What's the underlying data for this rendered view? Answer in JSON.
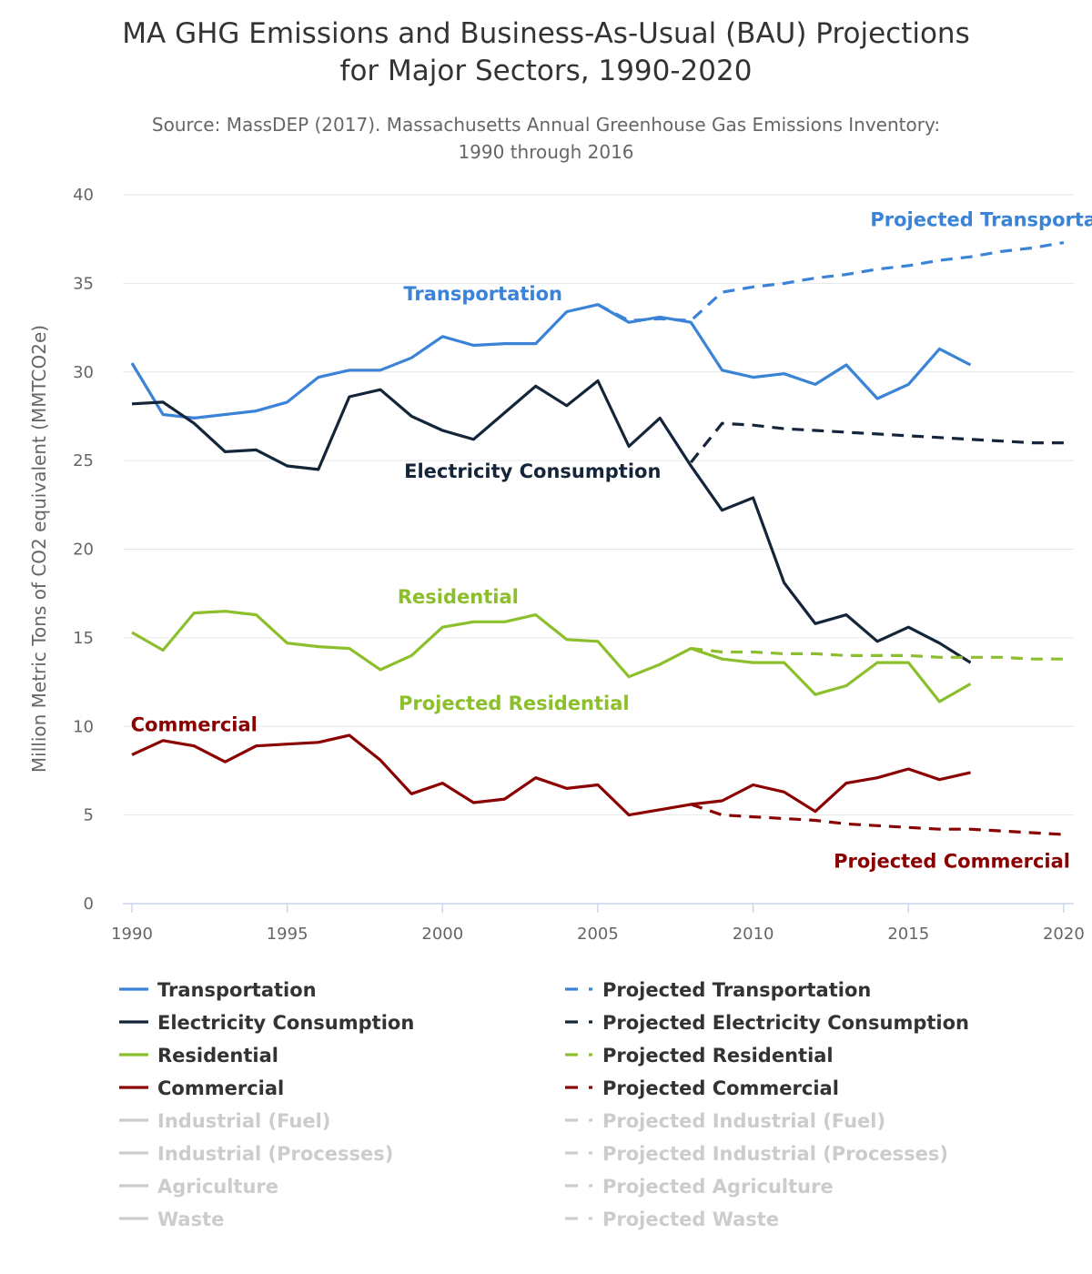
{
  "chart_data": {
    "type": "line",
    "title_line1": "MA GHG Emissions and Business-As-Usual (BAU) Projections",
    "title_line2": "for Major Sectors, 1990-2020",
    "subtitle_line1": "Source: MassDEP (2017). Massachusetts Annual Greenhouse Gas Emissions Inventory:",
    "subtitle_line2": "1990 through 2016",
    "ylabel": "Million Metric Tons of CO2 equivalent (MMTCO2e)",
    "xlim": [
      1990,
      2020
    ],
    "ylim": [
      0,
      40
    ],
    "x_ticks": [
      "1990",
      "1995",
      "2000",
      "2005",
      "2010",
      "2015",
      "2020"
    ],
    "y_ticks": [
      "0",
      "5",
      "10",
      "15",
      "20",
      "25",
      "30",
      "35",
      "40"
    ],
    "grid": true,
    "legend_position": "bottom",
    "series": [
      {
        "name": "Transportation",
        "color": "#3a83d6",
        "dash": false,
        "visible": true,
        "x": [
          1990,
          1991,
          1992,
          1993,
          1994,
          1995,
          1996,
          1997,
          1998,
          1999,
          2000,
          2001,
          2002,
          2003,
          2004,
          2005,
          2006,
          2007,
          2008,
          2009,
          2010,
          2011,
          2012,
          2013,
          2014,
          2015,
          2016,
          2017
        ],
        "y": [
          30.5,
          27.6,
          27.4,
          27.6,
          27.8,
          28.3,
          29.7,
          30.1,
          30.1,
          30.8,
          32.0,
          31.5,
          31.6,
          31.6,
          33.4,
          33.8,
          32.8,
          33.1,
          32.8,
          30.1,
          29.7,
          29.9,
          29.3,
          30.4,
          28.5,
          29.3,
          31.3,
          30.4
        ]
      },
      {
        "name": "Electricity Consumption",
        "color": "#14253a",
        "dash": false,
        "visible": true,
        "x": [
          1990,
          1991,
          1992,
          1993,
          1994,
          1995,
          1996,
          1997,
          1998,
          1999,
          2000,
          2001,
          2002,
          2003,
          2004,
          2005,
          2006,
          2007,
          2008,
          2009,
          2010,
          2011,
          2012,
          2013,
          2014,
          2015,
          2016,
          2017
        ],
        "y": [
          28.2,
          28.3,
          27.1,
          25.5,
          25.6,
          24.7,
          24.5,
          28.6,
          29.0,
          27.5,
          26.7,
          26.2,
          27.7,
          29.2,
          28.1,
          29.5,
          25.8,
          27.4,
          24.7,
          22.2,
          22.9,
          18.1,
          15.8,
          16.3,
          14.8,
          15.6,
          14.7,
          13.6
        ]
      },
      {
        "name": "Residential",
        "color": "#8bbf2b",
        "dash": false,
        "visible": true,
        "x": [
          1990,
          1991,
          1992,
          1993,
          1994,
          1995,
          1996,
          1997,
          1998,
          1999,
          2000,
          2001,
          2002,
          2003,
          2004,
          2005,
          2006,
          2007,
          2008,
          2009,
          2010,
          2011,
          2012,
          2013,
          2014,
          2015,
          2016,
          2017
        ],
        "y": [
          15.3,
          14.3,
          16.4,
          16.5,
          16.3,
          14.7,
          14.5,
          14.4,
          13.2,
          14.0,
          15.6,
          15.9,
          15.9,
          16.3,
          14.9,
          14.8,
          12.8,
          13.5,
          14.4,
          13.8,
          13.6,
          13.6,
          11.8,
          12.3,
          13.6,
          13.6,
          11.4,
          12.4
        ]
      },
      {
        "name": "Commercial",
        "color": "#8b0000",
        "dash": false,
        "visible": true,
        "x": [
          1990,
          1991,
          1992,
          1993,
          1994,
          1995,
          1996,
          1997,
          1998,
          1999,
          2000,
          2001,
          2002,
          2003,
          2004,
          2005,
          2006,
          2007,
          2008,
          2009,
          2010,
          2011,
          2012,
          2013,
          2014,
          2015,
          2016,
          2017
        ],
        "y": [
          8.4,
          9.2,
          8.9,
          8.0,
          8.9,
          9.0,
          9.1,
          9.5,
          8.1,
          6.2,
          6.8,
          5.7,
          5.9,
          7.1,
          6.5,
          6.7,
          5.0,
          5.3,
          5.6,
          5.8,
          6.7,
          6.3,
          5.2,
          6.8,
          7.1,
          7.6,
          7.0,
          7.4
        ]
      },
      {
        "name": "Projected Transportation",
        "color": "#3a83d6",
        "dash": true,
        "visible": true,
        "x": [
          2005,
          2006,
          2007,
          2008,
          2009,
          2010,
          2011,
          2012,
          2013,
          2014,
          2015,
          2016,
          2017,
          2018,
          2019,
          2020
        ],
        "y": [
          33.8,
          32.9,
          33.0,
          32.9,
          34.5,
          34.8,
          35.0,
          35.3,
          35.5,
          35.8,
          36.0,
          36.3,
          36.5,
          36.8,
          37.0,
          37.3
        ]
      },
      {
        "name": "Projected Electricity Consumption",
        "color": "#14253a",
        "dash": true,
        "visible": true,
        "x": [
          2008,
          2009,
          2010,
          2011,
          2012,
          2013,
          2014,
          2015,
          2016,
          2017,
          2018,
          2019,
          2020
        ],
        "y": [
          24.9,
          27.1,
          27.0,
          26.8,
          26.7,
          26.6,
          26.5,
          26.4,
          26.3,
          26.2,
          26.1,
          26.0,
          26.0
        ]
      },
      {
        "name": "Projected Residential",
        "color": "#8bbf2b",
        "dash": true,
        "visible": true,
        "x": [
          2008,
          2009,
          2010,
          2011,
          2012,
          2013,
          2014,
          2015,
          2016,
          2017,
          2018,
          2019,
          2020
        ],
        "y": [
          14.4,
          14.2,
          14.2,
          14.1,
          14.1,
          14.0,
          14.0,
          14.0,
          13.9,
          13.9,
          13.9,
          13.8,
          13.8
        ]
      },
      {
        "name": "Projected Commercial",
        "color": "#8b0000",
        "dash": true,
        "visible": true,
        "x": [
          2008,
          2009,
          2010,
          2011,
          2012,
          2013,
          2014,
          2015,
          2016,
          2017,
          2018,
          2019,
          2020
        ],
        "y": [
          5.6,
          5.0,
          4.9,
          4.8,
          4.7,
          4.5,
          4.4,
          4.3,
          4.2,
          4.2,
          4.1,
          4.0,
          3.9
        ]
      },
      {
        "name": "Industrial (Fuel)",
        "color": "#cccccc",
        "dash": false,
        "visible": false,
        "x": [],
        "y": []
      },
      {
        "name": "Industrial (Processes)",
        "color": "#cccccc",
        "dash": false,
        "visible": false,
        "x": [],
        "y": []
      },
      {
        "name": "Agriculture",
        "color": "#cccccc",
        "dash": false,
        "visible": false,
        "x": [],
        "y": []
      },
      {
        "name": "Waste",
        "color": "#cccccc",
        "dash": false,
        "visible": false,
        "x": [],
        "y": []
      },
      {
        "name": "Projected Industrial (Fuel)",
        "color": "#cccccc",
        "dash": true,
        "visible": false,
        "x": [],
        "y": []
      },
      {
        "name": "Projected Industrial (Processes)",
        "color": "#cccccc",
        "dash": true,
        "visible": false,
        "x": [],
        "y": []
      },
      {
        "name": "Projected Agriculture",
        "color": "#cccccc",
        "dash": true,
        "visible": false,
        "x": [],
        "y": []
      },
      {
        "name": "Projected Waste",
        "color": "#cccccc",
        "dash": true,
        "visible": false,
        "x": [],
        "y": []
      }
    ],
    "annotations": [
      {
        "text": "Projected Transportation",
        "color": "#3a83d6",
        "x": 2018.1,
        "y": 38.6
      },
      {
        "text": "Transportation",
        "color": "#3a83d6",
        "x": 2001.3,
        "y": 34.4
      },
      {
        "text": "Electricity Consumption",
        "color": "#14253a",
        "x": 2002.9,
        "y": 24.4
      },
      {
        "text": "Residential",
        "color": "#8bbf2b",
        "x": 2000.5,
        "y": 17.3
      },
      {
        "text": "Projected Residential",
        "color": "#8bbf2b",
        "x": 2002.3,
        "y": 11.3
      },
      {
        "text": "Commercial",
        "color": "#8b0000",
        "x": 1992.0,
        "y": 10.1
      },
      {
        "text": "Projected Commercial",
        "color": "#8b0000",
        "x": 2016.4,
        "y": 2.4
      }
    ]
  },
  "legend": {
    "left": [
      "Transportation",
      "Electricity Consumption",
      "Residential",
      "Commercial",
      "Industrial (Fuel)",
      "Industrial (Processes)",
      "Agriculture",
      "Waste"
    ],
    "right": [
      "Projected Transportation",
      "Projected Electricity Consumption",
      "Projected Residential",
      "Projected Commercial",
      "Projected Industrial (Fuel)",
      "Projected Industrial (Processes)",
      "Projected Agriculture",
      "Projected Waste"
    ]
  },
  "colors": {
    "grid": "#e6e6e6",
    "axis": "#ccd6eb",
    "hidden": "#cccccc",
    "legend_text": "#333333"
  }
}
